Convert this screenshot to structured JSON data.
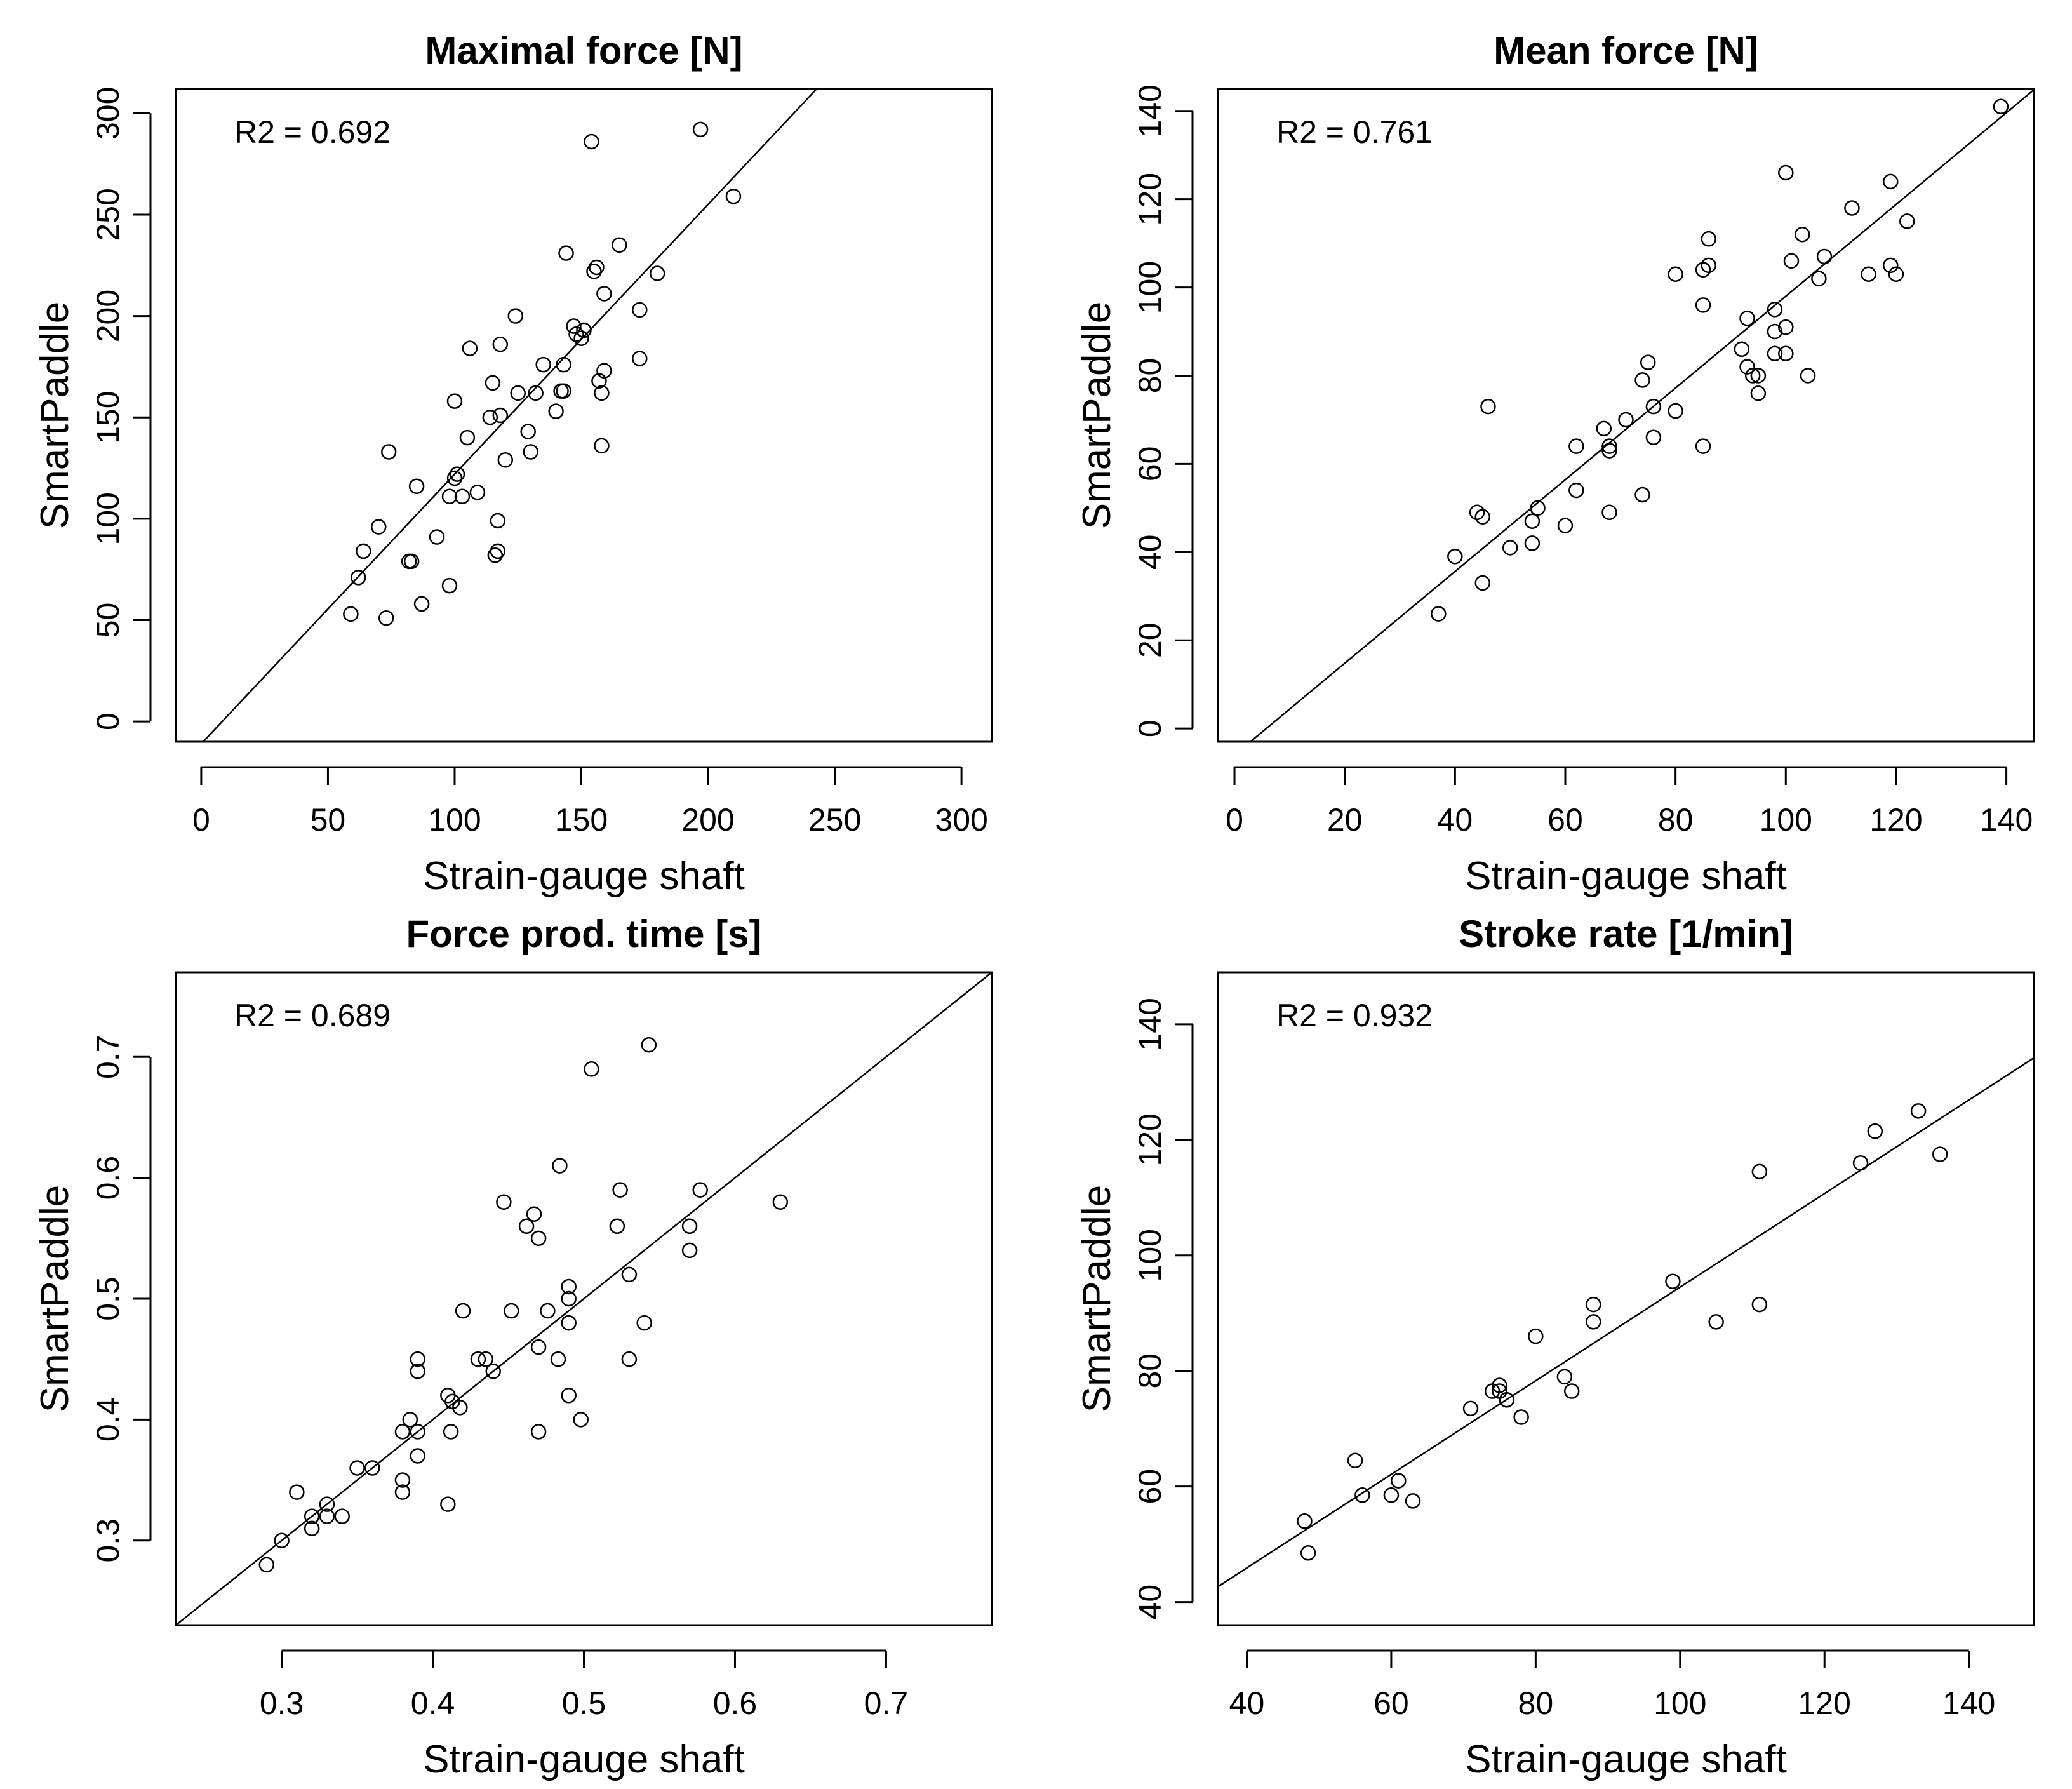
{
  "chart_data": [
    {
      "type": "scatter",
      "title": "Maximal force [N]",
      "xlabel": "Strain-gauge shaft",
      "ylabel": "SmartPaddle",
      "annotation": "R2 = 0.692",
      "xlim": [
        -10,
        312
      ],
      "ylim": [
        -10,
        312
      ],
      "xticks": [
        "0",
        "50",
        "100",
        "150",
        "200",
        "250",
        "300"
      ],
      "yticks": [
        "0",
        "50",
        "100",
        "150",
        "200",
        "250",
        "300"
      ],
      "fit": {
        "slope": 1.33,
        "intercept": -11
      },
      "points": [
        [
          59,
          53
        ],
        [
          62,
          71
        ],
        [
          64,
          84
        ],
        [
          70,
          96
        ],
        [
          73,
          51
        ],
        [
          74,
          133
        ],
        [
          82,
          79
        ],
        [
          83,
          79
        ],
        [
          85,
          116
        ],
        [
          87,
          58
        ],
        [
          93,
          91
        ],
        [
          98,
          67
        ],
        [
          98,
          111
        ],
        [
          100,
          158
        ],
        [
          100,
          120
        ],
        [
          101,
          122
        ],
        [
          103,
          111
        ],
        [
          105,
          140
        ],
        [
          106,
          184
        ],
        [
          109,
          113
        ],
        [
          114,
          150
        ],
        [
          115,
          167
        ],
        [
          116,
          82
        ],
        [
          117,
          84
        ],
        [
          117,
          99
        ],
        [
          118,
          186
        ],
        [
          118,
          151
        ],
        [
          120,
          129
        ],
        [
          124,
          200
        ],
        [
          125,
          162
        ],
        [
          129,
          143
        ],
        [
          130,
          133
        ],
        [
          132,
          162
        ],
        [
          135,
          176
        ],
        [
          140,
          153
        ],
        [
          142,
          163
        ],
        [
          143,
          163
        ],
        [
          143,
          176
        ],
        [
          144,
          231
        ],
        [
          147,
          195
        ],
        [
          148,
          191
        ],
        [
          150,
          189
        ],
        [
          151,
          193
        ],
        [
          154,
          286
        ],
        [
          155,
          222
        ],
        [
          156,
          224
        ],
        [
          157,
          168
        ],
        [
          158,
          162
        ],
        [
          158,
          136
        ],
        [
          159,
          211
        ],
        [
          159,
          173
        ],
        [
          165,
          235
        ],
        [
          173,
          203
        ],
        [
          173,
          179
        ],
        [
          180,
          221
        ],
        [
          197,
          292
        ],
        [
          210,
          259
        ]
      ]
    },
    {
      "type": "scatter",
      "title": "Mean force [N]",
      "xlabel": "Strain-gauge shaft",
      "ylabel": "SmartPaddle",
      "annotation": "R2 = 0.761",
      "xlim": [
        -3,
        145
      ],
      "ylim": [
        -3,
        145
      ],
      "xticks": [
        "0",
        "20",
        "40",
        "60",
        "80",
        "100",
        "120",
        "140"
      ],
      "yticks": [
        "0",
        "20",
        "40",
        "60",
        "80",
        "100",
        "120",
        "140"
      ],
      "fit": {
        "slope": 1.04,
        "intercept": -6
      },
      "points": [
        [
          37,
          26
        ],
        [
          40,
          39
        ],
        [
          44,
          49
        ],
        [
          45,
          48
        ],
        [
          45,
          33
        ],
        [
          46,
          73
        ],
        [
          50,
          41
        ],
        [
          54,
          42
        ],
        [
          54,
          47
        ],
        [
          55,
          50
        ],
        [
          60,
          46
        ],
        [
          62,
          54
        ],
        [
          62,
          64
        ],
        [
          67,
          68
        ],
        [
          68,
          64
        ],
        [
          68,
          63
        ],
        [
          68,
          49
        ],
        [
          71,
          70
        ],
        [
          74,
          79
        ],
        [
          74,
          53
        ],
        [
          75,
          83
        ],
        [
          76,
          73
        ],
        [
          76,
          66
        ],
        [
          80,
          103
        ],
        [
          80,
          72
        ],
        [
          85,
          104
        ],
        [
          85,
          96
        ],
        [
          85,
          64
        ],
        [
          86,
          111
        ],
        [
          86,
          105
        ],
        [
          92,
          86
        ],
        [
          93,
          93
        ],
        [
          93,
          82
        ],
        [
          94,
          80
        ],
        [
          95,
          80
        ],
        [
          95,
          76
        ],
        [
          98,
          95
        ],
        [
          98,
          90
        ],
        [
          98,
          85
        ],
        [
          100,
          126
        ],
        [
          100,
          91
        ],
        [
          100,
          85
        ],
        [
          101,
          106
        ],
        [
          103,
          112
        ],
        [
          104,
          80
        ],
        [
          106,
          102
        ],
        [
          107,
          107
        ],
        [
          112,
          118
        ],
        [
          115,
          103
        ],
        [
          119,
          124
        ],
        [
          119,
          105
        ],
        [
          120,
          103
        ],
        [
          122,
          115
        ],
        [
          139,
          141
        ]
      ]
    },
    {
      "type": "scatter",
      "title": "Force prod. time [s]",
      "xlabel": "Strain-gauge shaft",
      "ylabel": "SmartPaddle",
      "annotation": "R2 = 0.689",
      "xlim": [
        0.23,
        0.77
      ],
      "ylim": [
        0.23,
        0.77
      ],
      "xticks": [
        "0.3",
        "0.4",
        "0.5",
        "0.6",
        "0.7"
      ],
      "yticks": [
        "0.3",
        "0.4",
        "0.5",
        "0.6",
        "0.7"
      ],
      "fit": {
        "slope": 1.0,
        "intercept": 0.0
      },
      "points": [
        [
          0.29,
          0.28
        ],
        [
          0.3,
          0.3
        ],
        [
          0.31,
          0.34
        ],
        [
          0.32,
          0.32
        ],
        [
          0.32,
          0.31
        ],
        [
          0.33,
          0.33
        ],
        [
          0.33,
          0.32
        ],
        [
          0.34,
          0.32
        ],
        [
          0.35,
          0.36
        ],
        [
          0.36,
          0.36
        ],
        [
          0.38,
          0.39
        ],
        [
          0.38,
          0.35
        ],
        [
          0.38,
          0.34
        ],
        [
          0.385,
          0.4
        ],
        [
          0.39,
          0.45
        ],
        [
          0.39,
          0.44
        ],
        [
          0.39,
          0.37
        ],
        [
          0.39,
          0.39
        ],
        [
          0.41,
          0.42
        ],
        [
          0.41,
          0.33
        ],
        [
          0.412,
          0.39
        ],
        [
          0.413,
          0.415
        ],
        [
          0.418,
          0.41
        ],
        [
          0.42,
          0.49
        ],
        [
          0.43,
          0.45
        ],
        [
          0.435,
          0.45
        ],
        [
          0.44,
          0.44
        ],
        [
          0.447,
          0.58
        ],
        [
          0.452,
          0.49
        ],
        [
          0.462,
          0.56
        ],
        [
          0.467,
          0.57
        ],
        [
          0.47,
          0.55
        ],
        [
          0.47,
          0.46
        ],
        [
          0.47,
          0.39
        ],
        [
          0.476,
          0.49
        ],
        [
          0.483,
          0.45
        ],
        [
          0.484,
          0.61
        ],
        [
          0.49,
          0.51
        ],
        [
          0.49,
          0.5
        ],
        [
          0.49,
          0.42
        ],
        [
          0.49,
          0.48
        ],
        [
          0.498,
          0.4
        ],
        [
          0.505,
          0.69
        ],
        [
          0.522,
          0.56
        ],
        [
          0.524,
          0.59
        ],
        [
          0.53,
          0.52
        ],
        [
          0.53,
          0.45
        ],
        [
          0.54,
          0.48
        ],
        [
          0.543,
          0.71
        ],
        [
          0.57,
          0.56
        ],
        [
          0.57,
          0.54
        ],
        [
          0.577,
          0.59
        ],
        [
          0.63,
          0.58
        ]
      ]
    },
    {
      "type": "scatter",
      "title": "Stroke rate [1/min]",
      "xlabel": "Strain-gauge shaft",
      "ylabel": "SmartPaddle",
      "annotation": "R2 = 0.932",
      "xlim": [
        36,
        149
      ],
      "ylim": [
        36,
        149
      ],
      "xticks": [
        "40",
        "60",
        "80",
        "100",
        "120",
        "140"
      ],
      "yticks": [
        "40",
        "60",
        "80",
        "100",
        "120",
        "140"
      ],
      "fit": {
        "slope": 0.81,
        "intercept": 13.5
      },
      "points": [
        [
          48,
          54
        ],
        [
          48.5,
          48.5
        ],
        [
          55,
          64.5
        ],
        [
          56,
          58.5
        ],
        [
          60,
          58.5
        ],
        [
          61,
          61
        ],
        [
          63,
          57.5
        ],
        [
          71,
          73.5
        ],
        [
          74,
          76.5
        ],
        [
          75,
          77.5
        ],
        [
          75,
          76.5
        ],
        [
          76,
          75
        ],
        [
          76,
          75
        ],
        [
          78,
          72
        ],
        [
          80,
          86
        ],
        [
          84,
          79
        ],
        [
          85,
          76.5
        ],
        [
          88,
          91.5
        ],
        [
          88,
          88.5
        ],
        [
          99,
          95.5
        ],
        [
          105,
          88.5
        ],
        [
          111,
          114.5
        ],
        [
          111,
          91.5
        ],
        [
          125,
          116
        ],
        [
          127,
          121.5
        ],
        [
          133,
          125
        ],
        [
          136,
          117.5
        ]
      ]
    }
  ]
}
